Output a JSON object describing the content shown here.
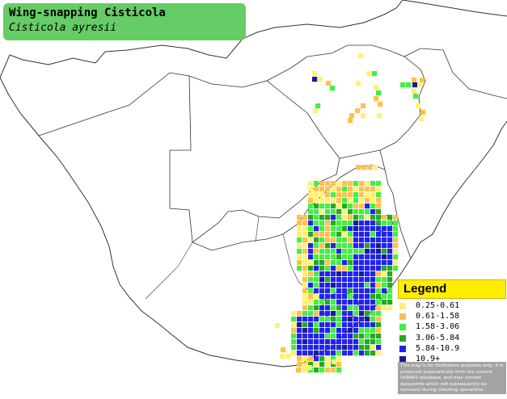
{
  "title": {
    "common_name": "Wing-snapping Cisticola",
    "scientific_name": "Cisticola ayresii"
  },
  "legend": {
    "heading": "Legend",
    "items": [
      {
        "label": "0.25-0.61",
        "color": "#fff176"
      },
      {
        "label": "0.61-1.58",
        "color": "#ffc14d"
      },
      {
        "label": "1.58-3.06",
        "color": "#44ee44"
      },
      {
        "label": "3.06-5.84",
        "color": "#22aa22"
      },
      {
        "label": "5.84-10.9",
        "color": "#2222ee"
      },
      {
        "label": "10.9+",
        "color": "#1a1a99"
      }
    ],
    "note": "This map is for illustrative purposes only; it is produced automatically from the current SABAP2 database, and may contain datapoints which will subsequently be removed during checking operations."
  },
  "colors": {
    "background": "#ffffff",
    "border": "#333333",
    "title_box": "#66cc66",
    "legend_header": "#ffee00",
    "note_box": "#a3a3a3"
  }
}
